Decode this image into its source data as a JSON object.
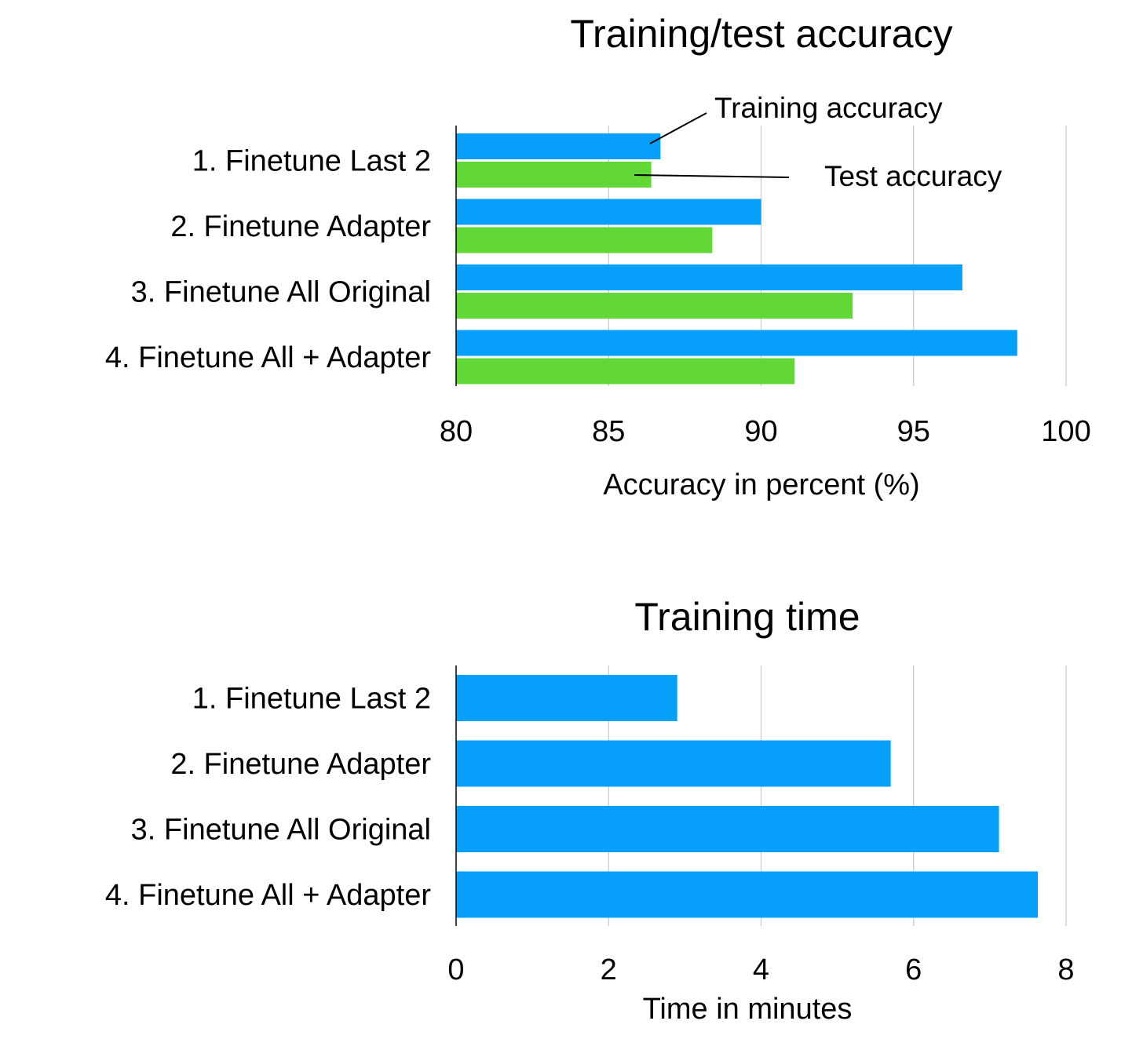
{
  "chart_data": [
    {
      "type": "bar",
      "orientation": "horizontal",
      "title": "Training/test accuracy",
      "xlabel": "Accuracy in percent (%)",
      "ylabel": "",
      "categories": [
        "1. Finetune Last 2",
        "2. Finetune Adapter",
        "3. Finetune All Original",
        "4. Finetune All + Adapter"
      ],
      "series": [
        {
          "name": "Training accuracy",
          "color": "#06A0FB",
          "values": [
            86.7,
            90.0,
            96.6,
            98.4
          ]
        },
        {
          "name": "Test accuracy",
          "color": "#62D836",
          "values": [
            86.4,
            88.4,
            93.0,
            91.1
          ]
        }
      ],
      "xlim": [
        80,
        100
      ],
      "ticks": [
        80,
        85,
        90,
        95,
        100
      ],
      "grid": true,
      "annotations": [
        "Training accuracy",
        "Test accuracy"
      ]
    },
    {
      "type": "bar",
      "orientation": "horizontal",
      "title": "Training time",
      "xlabel": "Time in minutes",
      "ylabel": "",
      "categories": [
        "1. Finetune Last 2",
        "2. Finetune Adapter",
        "3. Finetune All Original",
        "4. Finetune All + Adapter"
      ],
      "series": [
        {
          "color": "#06A0FB",
          "values": [
            2.9,
            5.7,
            7.12,
            7.63
          ]
        }
      ],
      "xlim": [
        0,
        8
      ],
      "ticks": [
        0,
        2,
        4,
        6,
        8
      ],
      "grid": true
    }
  ]
}
